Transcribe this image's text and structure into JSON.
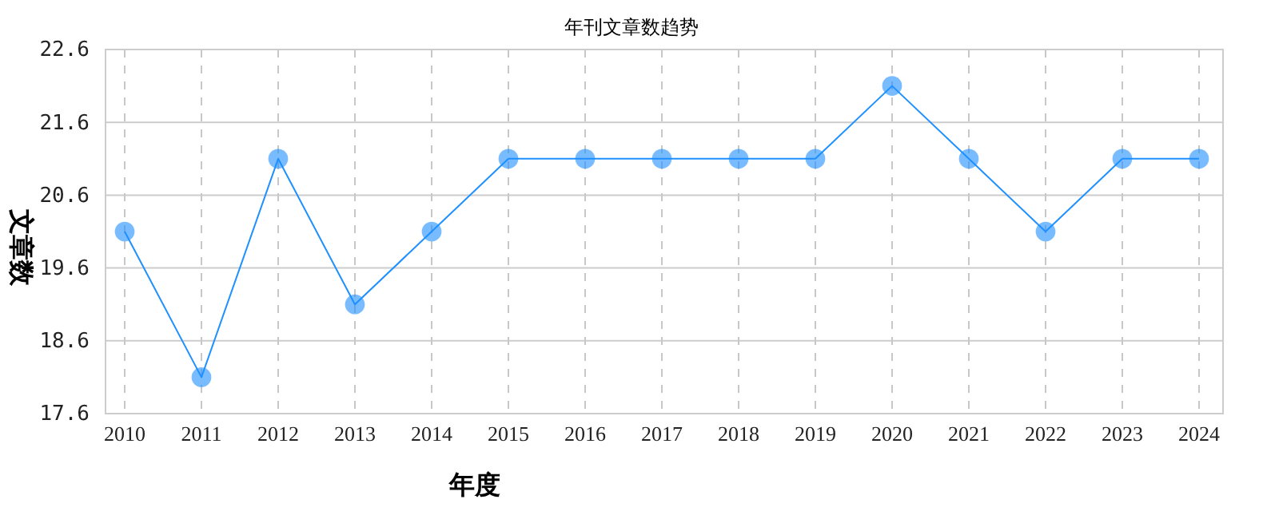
{
  "chart_data": {
    "type": "line",
    "title": "年刊文章数趋势",
    "xlabel": "年度",
    "ylabel": "文章数",
    "categories": [
      "2010",
      "2011",
      "2012",
      "2013",
      "2014",
      "2015",
      "2016",
      "2017",
      "2018",
      "2019",
      "2020",
      "2021",
      "2022",
      "2023",
      "2024"
    ],
    "series": [
      {
        "color": "#1e90ff",
        "values": [
          20.1,
          18.1,
          21.1,
          19.1,
          20.1,
          21.1,
          21.1,
          21.1,
          21.1,
          21.1,
          22.1,
          21.1,
          20.1,
          21.1,
          21.1
        ]
      }
    ],
    "ylim": [
      17.6,
      22.6
    ],
    "yticks": [
      17.6,
      18.6,
      19.6,
      20.6,
      21.6,
      22.6
    ],
    "grid": true,
    "marker": "circle",
    "line_style": "solid"
  }
}
